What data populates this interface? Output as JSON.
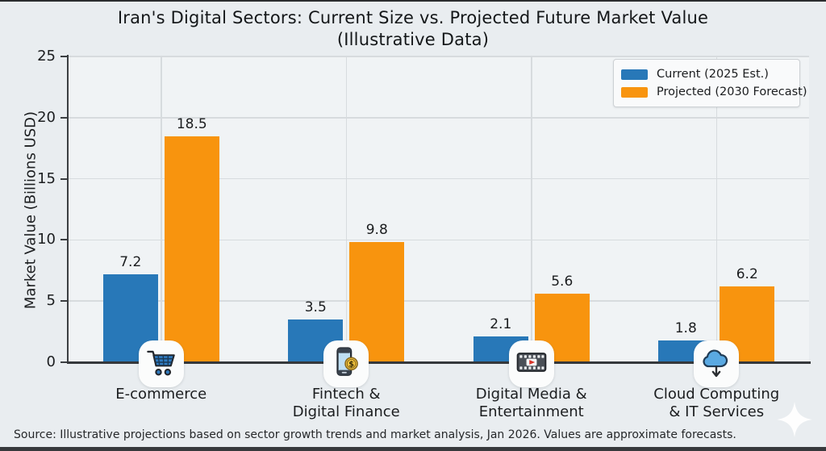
{
  "meta": {
    "background_color": "#e9edf0",
    "plot_background_color": "#f0f3f5",
    "gridline_color": "#d7dbde",
    "axis_color": "#3b3e41",
    "text_color": "#1b1d1f",
    "current_color": "#2878b8",
    "projected_color": "#f8940e"
  },
  "chart": {
    "title_line1": "Iran's Digital Sectors: Current Size vs. Projected Future Market Value",
    "title_line2": "(Illustrative Data)",
    "ylabel": "Market Value (Billions USD)"
  },
  "chart_data": {
    "type": "bar",
    "title": "Iran's Digital Sectors: Current Size vs. Projected Future Market Value (Illustrative Data)",
    "xlabel": "",
    "ylabel": "Market Value (Billions USD)",
    "ylim": [
      0,
      25
    ],
    "yticks": [
      0,
      5,
      10,
      15,
      20,
      25
    ],
    "grid": true,
    "legend_position": "upper right",
    "categories": [
      "E-commerce",
      "Fintech & Digital Finance",
      "Digital Media & Entertainment",
      "Cloud Computing & IT Services"
    ],
    "series": [
      {
        "name": "Current (2025 Est.)",
        "color": "#2878b8",
        "values": [
          7.2,
          3.5,
          2.1,
          1.8
        ]
      },
      {
        "name": "Projected (2030 Forecast)",
        "color": "#f8940e",
        "values": [
          18.5,
          9.8,
          5.6,
          6.2
        ]
      }
    ],
    "bar_value_labels": [
      "7.2",
      "18.5",
      "3.5",
      "9.8",
      "2.1",
      "5.6",
      "1.8",
      "6.2"
    ]
  },
  "legend": {
    "items": [
      {
        "label": "Current (2025 Est.)",
        "color": "#2878b8"
      },
      {
        "label": "Projected (2030 Forecast)",
        "color": "#f8940e"
      }
    ]
  },
  "categories": [
    {
      "name": "E-commerce",
      "lines": [
        "E-commerce"
      ],
      "icon": "shopping-cart-icon"
    },
    {
      "name": "Fintech & Digital Finance",
      "lines": [
        "Fintech &",
        "Digital Finance"
      ],
      "icon": "mobile-payment-icon"
    },
    {
      "name": "Digital Media & Entertainment",
      "lines": [
        "Digital Media &",
        "Entertainment"
      ],
      "icon": "film-play-icon"
    },
    {
      "name": "Cloud Computing & IT Services",
      "lines": [
        "Cloud Computing",
        "& IT Services"
      ],
      "icon": "cloud-download-icon"
    }
  ],
  "source_note": "Source: Illustrative projections based on sector growth trends and market analysis, Jan 2026. Values are approximate forecasts."
}
